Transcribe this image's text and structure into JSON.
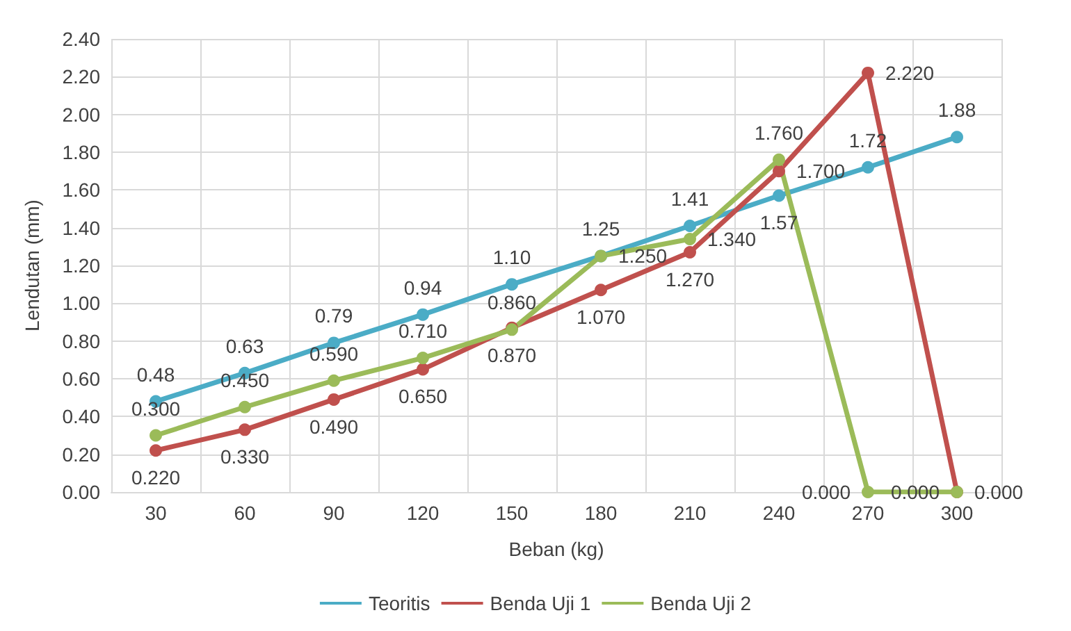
{
  "chart_data": {
    "type": "line",
    "xlabel": "Beban (kg)",
    "ylabel": "Lendutan (mm)",
    "categories": [
      "30",
      "60",
      "90",
      "120",
      "150",
      "180",
      "210",
      "240",
      "270",
      "300"
    ],
    "series": [
      {
        "name": "Teoritis",
        "color": "#4bacc6",
        "values": [
          0.48,
          0.63,
          0.79,
          0.94,
          1.1,
          1.25,
          1.41,
          1.57,
          1.72,
          1.88
        ],
        "value_labels": [
          "0.48",
          "0.63",
          "0.79",
          "0.94",
          "1.10",
          "1.25",
          "1.41",
          "1.57",
          "1.72",
          "1.88"
        ]
      },
      {
        "name": "Benda Uji 1",
        "color": "#c0504d",
        "values": [
          0.22,
          0.33,
          0.49,
          0.65,
          0.87,
          1.07,
          1.27,
          1.7,
          2.22,
          0
        ],
        "value_labels": [
          "0.220",
          "0.330",
          "0.490",
          "0.650",
          "0.870",
          "1.070",
          "1.270",
          "1.700",
          "2.220",
          "0.000"
        ]
      },
      {
        "name": "Benda Uji 2",
        "color": "#9bbb59",
        "values": [
          0.3,
          0.45,
          0.59,
          0.71,
          0.86,
          1.25,
          1.34,
          1.76,
          0,
          0
        ],
        "value_labels": [
          "0.300",
          "0.450",
          "0.590",
          "0.710",
          "0.860",
          "1.250",
          "1.340",
          "1.760",
          "0.000",
          "0.000"
        ]
      }
    ],
    "ylim": [
      0,
      2.4
    ],
    "yticks": [
      {
        "value": 0,
        "label": "0.00"
      },
      {
        "value": 0.2,
        "label": "0.20"
      },
      {
        "value": 0.4,
        "label": "0.40"
      },
      {
        "value": 0.6,
        "label": "0.60"
      },
      {
        "value": 0.8,
        "label": "0.80"
      },
      {
        "value": 1,
        "label": "1.00"
      },
      {
        "value": 1.2,
        "label": "1.20"
      },
      {
        "value": 1.4,
        "label": "1.40"
      },
      {
        "value": 1.6,
        "label": "1.60"
      },
      {
        "value": 1.8,
        "label": "1.80"
      },
      {
        "value": 2,
        "label": "2.00"
      },
      {
        "value": 2.2,
        "label": "2.20"
      },
      {
        "value": 2.4,
        "label": "2.40"
      }
    ],
    "grid": true,
    "legend": "bottom",
    "marker": "circle",
    "line_style": "solid"
  }
}
